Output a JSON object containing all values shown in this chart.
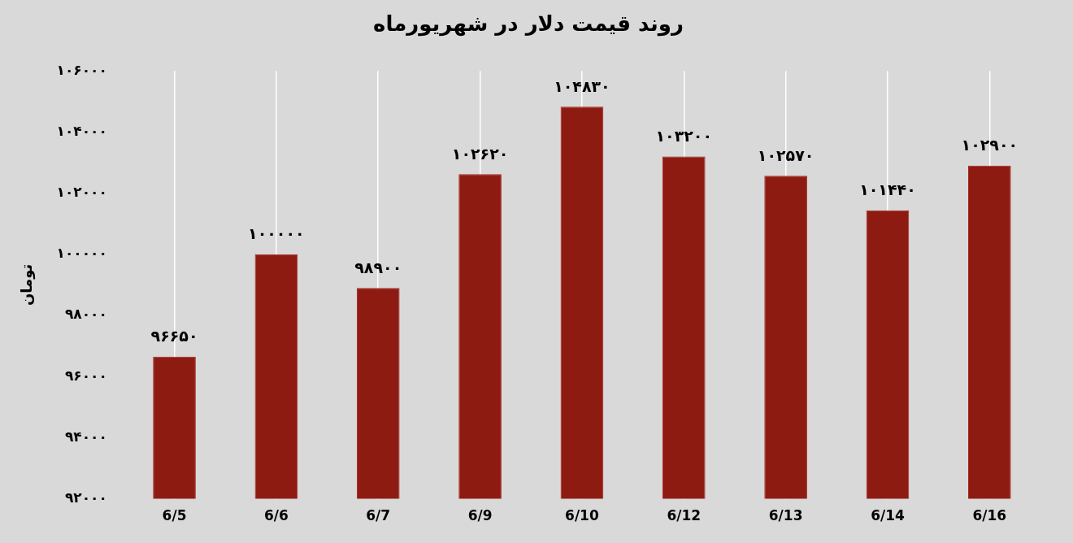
{
  "chart_data": {
    "type": "bar",
    "title": "روند قیمت دلار در شهریورماه",
    "ylabel": "تومان",
    "categories": [
      "6/5",
      "6/6",
      "6/7",
      "6/9",
      "6/10",
      "6/12",
      "6/13",
      "6/14",
      "6/16"
    ],
    "values": [
      96650,
      100000,
      98900,
      102620,
      104830,
      103200,
      102570,
      101440,
      102900
    ],
    "value_labels": [
      "۹۶۶۵۰",
      "۱۰۰۰۰۰",
      "۹۸۹۰۰",
      "۱۰۲۶۲۰",
      "۱۰۴۸۳۰",
      "۱۰۳۲۰۰",
      "۱۰۲۵۷۰",
      "۱۰۱۴۴۰",
      "۱۰۲۹۰۰"
    ],
    "color": "#8e1b12",
    "ylim": [
      92000,
      106000
    ],
    "yticks": [
      {
        "value": 92000,
        "label": "۹۲۰۰۰"
      },
      {
        "value": 94000,
        "label": "۹۴۰۰۰"
      },
      {
        "value": 96000,
        "label": "۹۶۰۰۰"
      },
      {
        "value": 98000,
        "label": "۹۸۰۰۰"
      },
      {
        "value": 100000,
        "label": "۱۰۰۰۰۰"
      },
      {
        "value": 102000,
        "label": "۱۰۲۰۰۰"
      },
      {
        "value": 104000,
        "label": "۱۰۴۰۰۰"
      },
      {
        "value": 106000,
        "label": "۱۰۶۰۰۰"
      }
    ],
    "grid": "x",
    "legend": false
  }
}
